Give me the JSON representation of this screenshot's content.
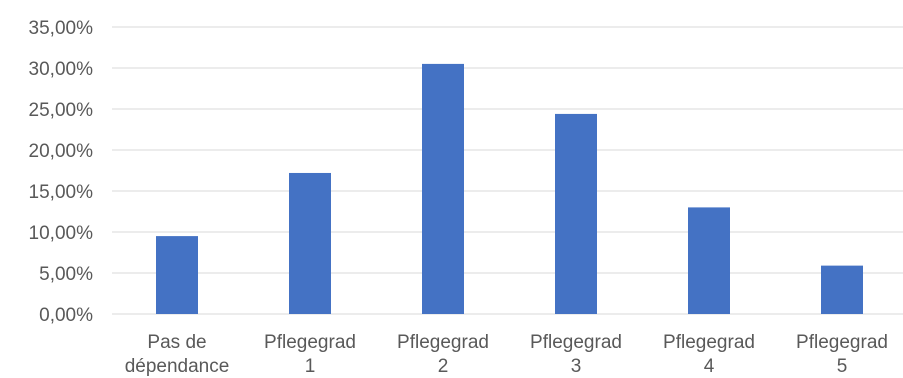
{
  "chart_data": {
    "type": "bar",
    "categories": [
      [
        "Pas de",
        "dépendance"
      ],
      [
        "Pflegegrad",
        "1"
      ],
      [
        "Pflegegrad",
        "2"
      ],
      [
        "Pflegegrad",
        "3"
      ],
      [
        "Pflegegrad",
        "4"
      ],
      [
        "Pflegegrad",
        "5"
      ]
    ],
    "values": [
      0.095,
      0.172,
      0.305,
      0.244,
      0.13,
      0.059
    ],
    "ylim": [
      0,
      0.35
    ],
    "ytick_values": [
      0,
      0.05,
      0.1,
      0.15,
      0.2,
      0.25,
      0.3,
      0.35
    ],
    "ytick_labels": [
      "0,00%",
      "5,00%",
      "10,00%",
      "15,00%",
      "20,00%",
      "25,00%",
      "30,00%",
      "35,00%"
    ],
    "grid": true,
    "bar_color": "#4472C4"
  }
}
